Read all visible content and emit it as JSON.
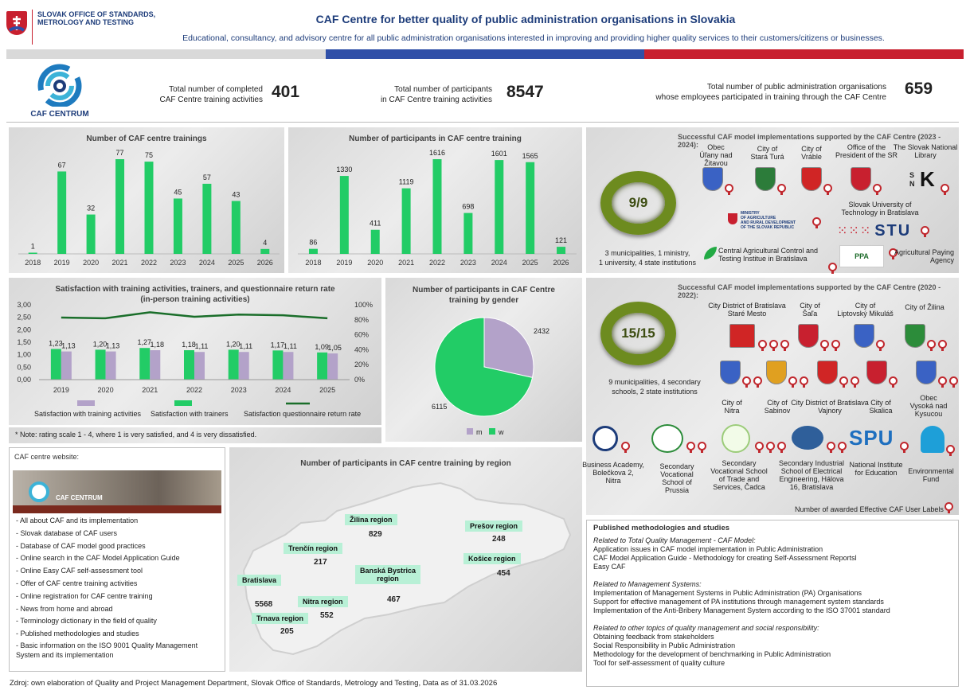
{
  "header": {
    "org_name": "SLOVAK OFFICE OF STANDARDS,\nMETROLOGY AND TESTING",
    "title": "CAF Centre for better quality of public administration organisations in Slovakia",
    "subtitle": "Educational, consultancy, and advisory centre for all public administration organisations interested in improving and providing higher quality services to their customers/citizens or businesses.",
    "flag_colors": [
      "#d9d9d9",
      "#2f4fa8",
      "#c8202f"
    ]
  },
  "stats": {
    "logo_text": "CAF CENTRUM",
    "trainings_label": "Total number of completed\nCAF Centre training activities",
    "trainings_value": "401",
    "participants_label": "Total number of participants\nin CAF Centre training activities",
    "participants_value": "8547",
    "orgs_label": "Total number of public administration organisations\nwhose employees participated in training through the CAF Centre",
    "orgs_value": "659"
  },
  "chart_data": [
    {
      "id": "trainings",
      "type": "bar",
      "title": "Number of CAF centre trainings",
      "categories": [
        "2018",
        "2019",
        "2020",
        "2021",
        "2022",
        "2023",
        "2024",
        "2025",
        "2026"
      ],
      "values": [
        1,
        67,
        32,
        77,
        75,
        45,
        57,
        43,
        4
      ],
      "color": "#22cc66"
    },
    {
      "id": "participants",
      "type": "bar",
      "title": "Number of participants in CAF centre  training",
      "categories": [
        "2018",
        "2019",
        "2020",
        "2021",
        "2022",
        "2023",
        "2024",
        "2025",
        "2026"
      ],
      "values": [
        86,
        1330,
        411,
        1119,
        1616,
        698,
        1601,
        1565,
        121
      ],
      "color": "#22cc66"
    },
    {
      "id": "satisfaction",
      "type": "bar",
      "title": "Satisfaction with training activities, trainers, and questionnaire return rate",
      "subtitle": "(in-person training activities)",
      "categories": [
        "2019",
        "2020",
        "2021",
        "2022",
        "2023",
        "2024",
        "2025"
      ],
      "series": [
        {
          "name": "Satisfaction with training activities",
          "values": [
            1.23,
            1.2,
            1.27,
            1.18,
            1.2,
            1.17,
            1.09
          ],
          "color": "#b3a2c9"
        },
        {
          "name": "Satisfaction with trainers",
          "values": [
            1.13,
            1.13,
            1.18,
            1.11,
            1.11,
            1.11,
            1.05
          ],
          "color": "#22cc66"
        },
        {
          "name": "Satisfaction questionnaire return rate",
          "type": "line",
          "axis": "right",
          "values": [
            0.83,
            0.82,
            0.9,
            0.84,
            0.87,
            0.86,
            0.82
          ],
          "color": "#1a6e2a"
        }
      ],
      "value_labels_a": [
        "1,23",
        "1,20",
        "1,27",
        "1,18",
        "1,20",
        "1,17",
        "1,09"
      ],
      "value_labels_b": [
        "1,13",
        "1,13",
        "1,18",
        "1,11",
        "1,11",
        "1,11",
        "1,05"
      ],
      "y_ticks": [
        "3,00",
        "2,50",
        "2,00",
        "1,50",
        "1,00",
        "0,50",
        "0,00"
      ],
      "ylim": [
        0,
        3
      ],
      "y2_ticks": [
        "100%",
        "80%",
        "60%",
        "40%",
        "20%",
        "0%"
      ],
      "y2lim": [
        0,
        1
      ],
      "note": "* Note: rating scale 1 - 4, where 1 is very satisfied, and 4 is very dissatisfied."
    },
    {
      "id": "gender",
      "type": "pie",
      "title": "Number of participants in CAF Centre\ntraining by gender",
      "slices": [
        {
          "name": "m",
          "value": 2432,
          "color": "#b3a2c9"
        },
        {
          "name": "w",
          "value": 6115,
          "color": "#22cc66"
        }
      ]
    },
    {
      "id": "regions",
      "type": "table",
      "title": "Number of participants in CAF centre training by region",
      "regions": [
        {
          "name": "Žilina region",
          "value": "829"
        },
        {
          "name": "Prešov region",
          "value": "248"
        },
        {
          "name": "Trenčín region",
          "value": "217"
        },
        {
          "name": "Košice region",
          "value": "454"
        },
        {
          "name": "Banská Bystrica\nregion",
          "value": "467"
        },
        {
          "name": "Bratislava",
          "value": "5568"
        },
        {
          "name": "Nitra region",
          "value": "552"
        },
        {
          "name": "Trnava region",
          "value": "205"
        }
      ]
    }
  ],
  "impl_2023": {
    "title": "Successful CAF model implementations supported by the CAF Centre (2023 - 2024):",
    "ring_text": "9/9",
    "summary": "3 municipalities, 1 ministry,\n1 university, 4 state institutions",
    "orgs": [
      "Obec\nÚľany nad Žitavou",
      "City of\nStará Turá",
      "City of\nVráble",
      "Office of the\nPresident of the SR",
      "The Slovak National\nLibrary",
      "Slovak University of\nTechnology in Bratislava",
      "Central Agricultural Control and\nTesting Institue in Bratislava",
      "Agricultural Paying\nAgency"
    ],
    "ministry_logo": "MINISTRY\nOF AGRICULTURE\nAND RURAL DEVELOPMENT\nOF THE SLOVAK REPUBLIC",
    "stu_logo": "STU",
    "ppa_logo": "PPA",
    "snk_logo": "S\nN"
  },
  "impl_2020": {
    "title": "Successful CAF model implementations supported by the CAF Centre (2020 - 2022):",
    "ring_text": "15/15",
    "summary": "9 municipalities, 4 secondary\nschools, 2 state institutions",
    "orgs": [
      "City District of Bratislava\nStaré Mesto",
      "City of\nŠaľa",
      "City of\nLiptovský Mikuláš",
      "City of Žilina",
      "City of\nNitra",
      "City of\nSabinov",
      "City District of Bratislava\nVajnory",
      "City of\nSkalica",
      "Obec\nVysoká nad\nKysucou",
      "Business Academy,\nBolečkova 2,\nNitra",
      "Secondary\nVocational\nSchool of\nPrussia",
      "Secondary\nVocational School\nof Trade and\nServices, Čadca",
      "Secondary Industrial\nSchool of Electrical\nEngineering, Hálova\n16, Bratislava",
      "National Institute\nfor Education",
      "Environmental\nFund"
    ],
    "spu_logo": "SPU",
    "awards_label": "Number of awarded Effective CAF User Labels"
  },
  "website": {
    "title": "CAF centre website:",
    "banner_text": "CAF CENTRUM",
    "items": [
      "- All about CAF and its implementation",
      "- Slovak database of CAF users",
      "- Database of CAF model good practices",
      "- Online search in the CAF Model Application Guide",
      "- Online Easy CAF self-assessment tool",
      "- Offer of CAF centre training activities",
      "- Online registration for CAF centre training",
      "- News from home and abroad",
      "- Terminology dictionary in the field of quality",
      "- Published methodologies and studies",
      "- Basic information on the ISO 9001 Quality Management\n  System and its implementation"
    ]
  },
  "methodologies": {
    "title": "Published methodologies and studies",
    "groups": [
      {
        "heading": "Related to Total Quality Management - CAF Model:",
        "items": [
          "Application issues in CAF model implementation in Public Administration",
          "CAF Model Application Guide - Methodology for creating Self-Assessment Reportsl",
          "Easy CAF"
        ]
      },
      {
        "heading": "Related to Management Systems:",
        "items": [
          "Implementation of Management Systems in Public Administration (PA) Organisations",
          "Support for effective management of PA institutions through management system standards",
          "Implementation of the Anti-Bribery Management System according to the ISO 37001 standard"
        ]
      },
      {
        "heading": "Related to other topics of quality management and social responsibility:",
        "items": [
          "Obtaining feedback from stakeholders",
          "Social Responsibility in Public Administration",
          "Methodology for the development of benchmarking in Public Administration",
          "Tool for self-assessment of quality culture"
        ]
      }
    ]
  },
  "footer": "Zdroj: own elaboration of Quality and Project Management Department, Slovak Office of Standards, Metrology and Testing, Data as of 31.03.2026"
}
